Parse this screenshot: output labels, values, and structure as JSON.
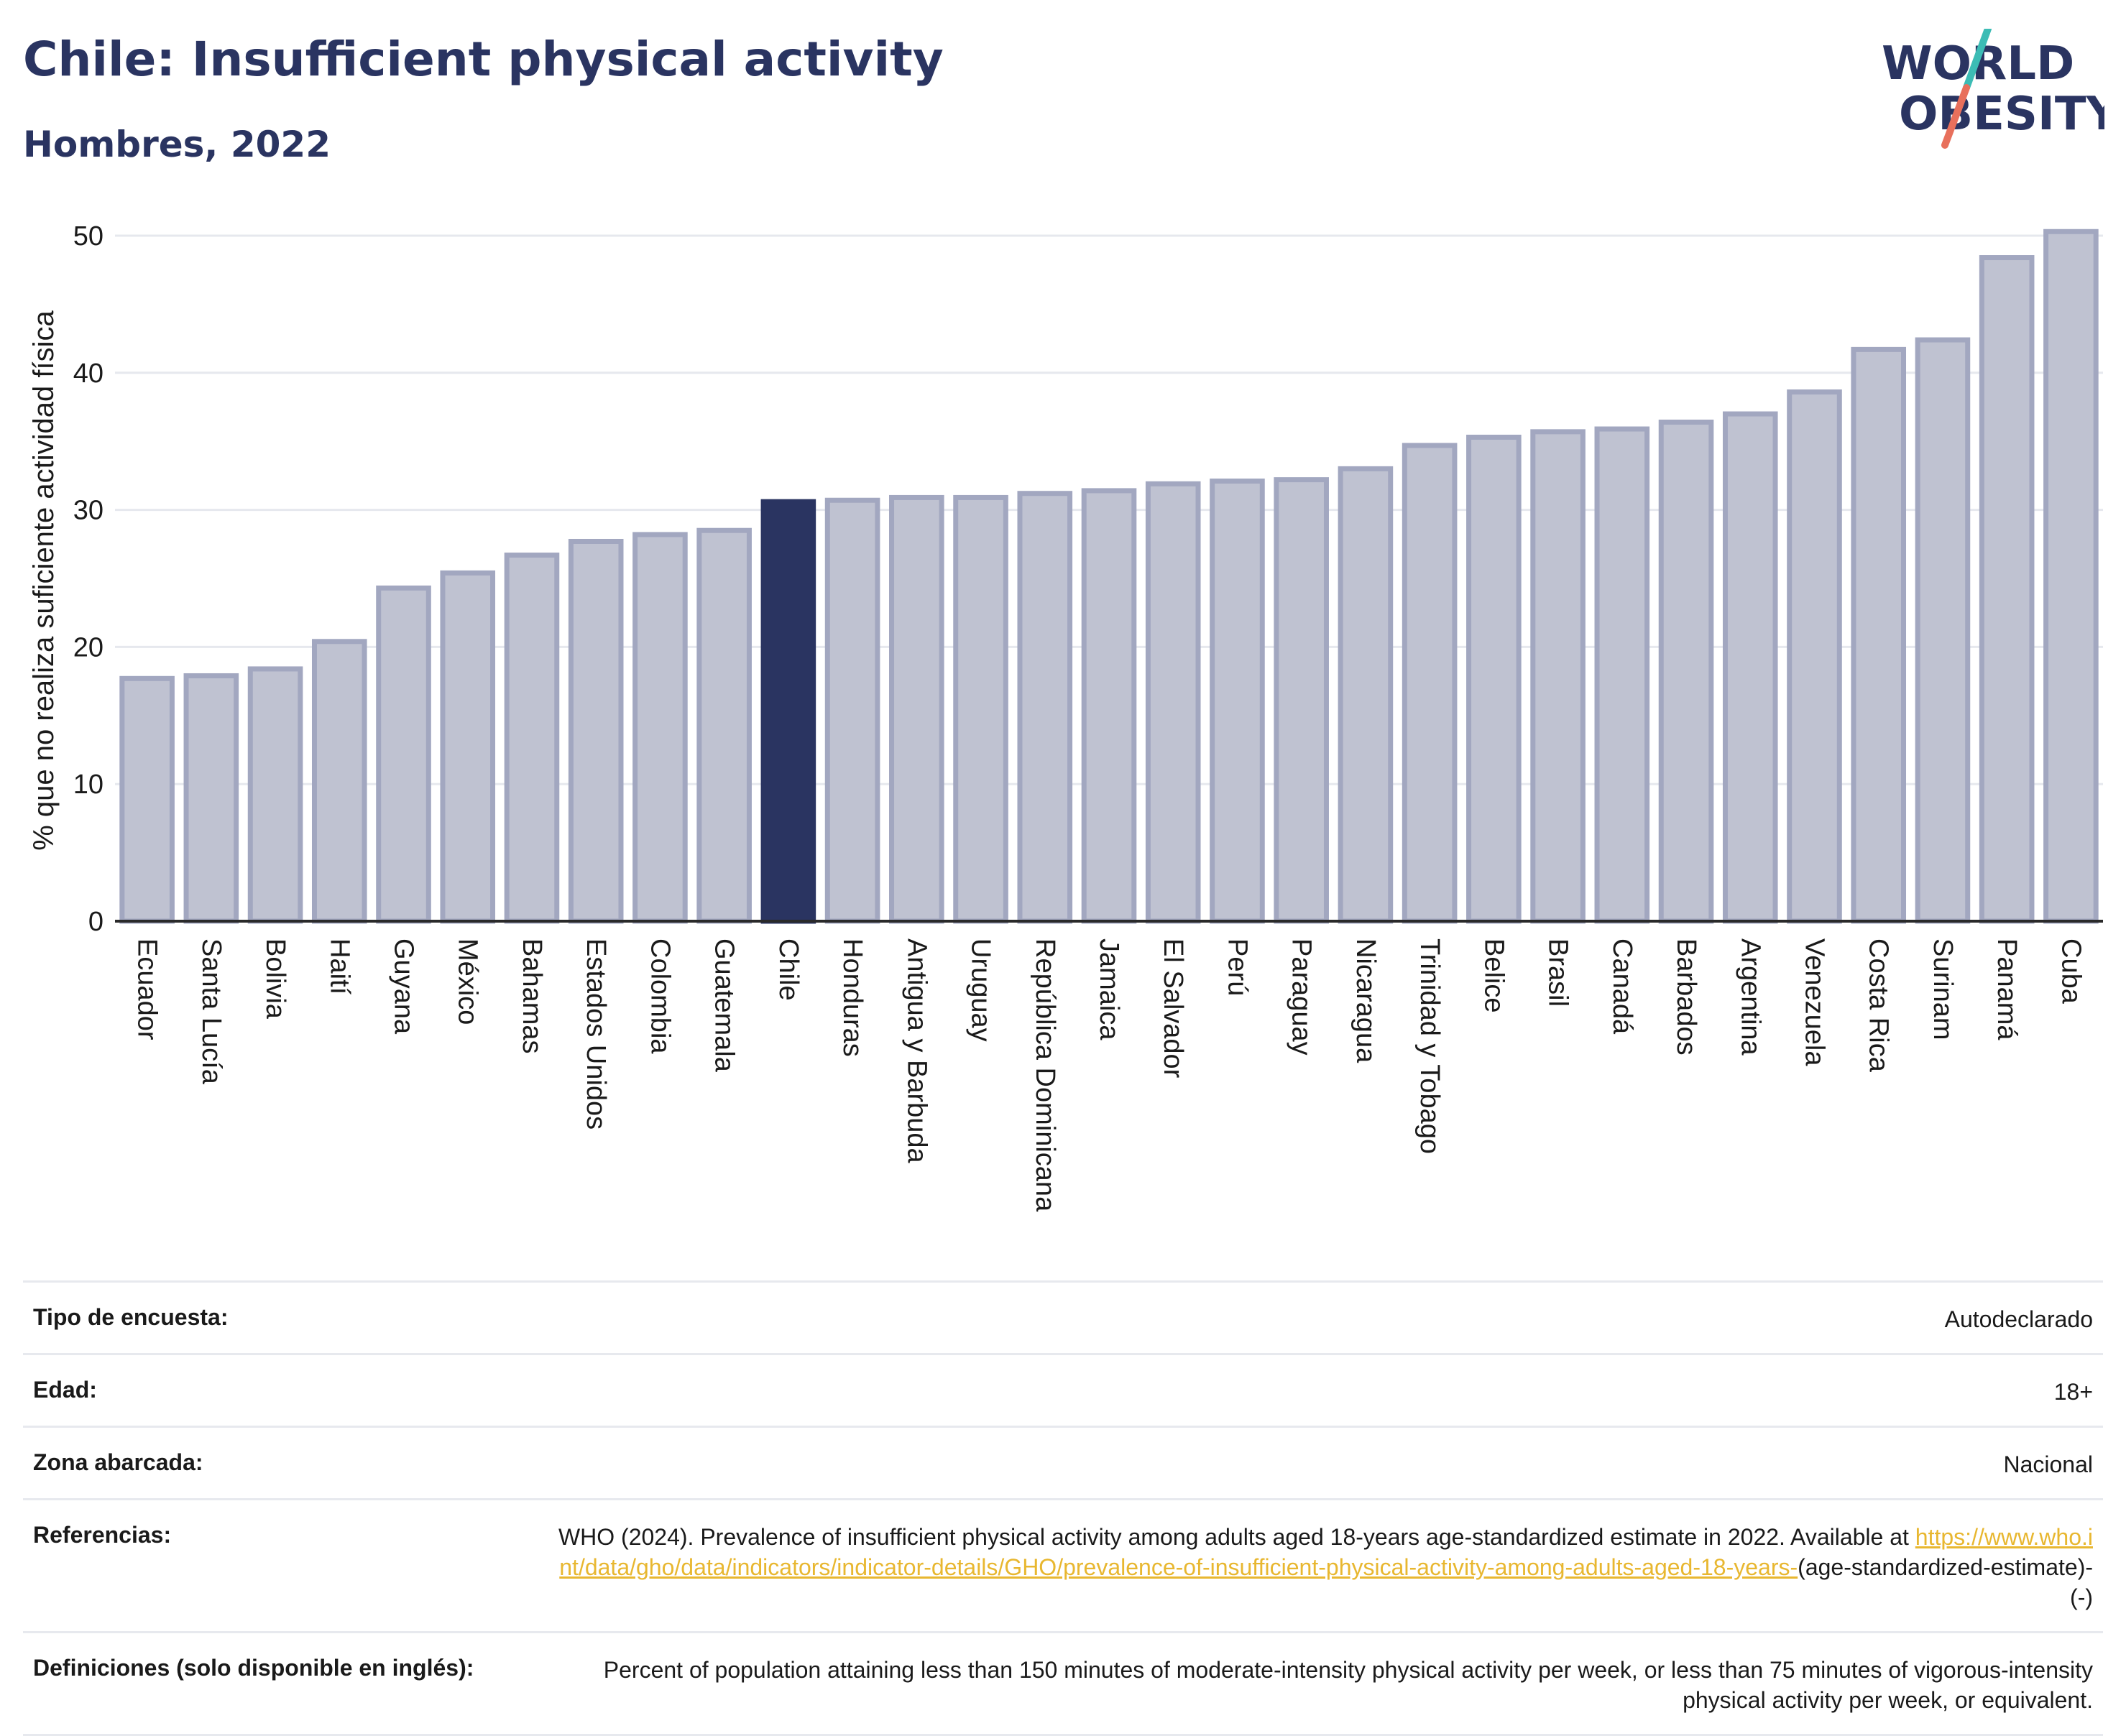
{
  "header": {
    "title": "Chile: Insufficient physical activity",
    "subtitle": "Hombres, 2022",
    "logo_line1": "WORLD",
    "logo_line2": "OBESITY"
  },
  "colors": {
    "bar": "#bfc2d1",
    "bar_border": "#a2a7c0",
    "highlight": "#2a3461",
    "text": "#2a3461",
    "grid": "#e6e8ee",
    "link": "#e8b730",
    "logo_teal": "#3cbcb5",
    "logo_coral": "#e8705c"
  },
  "chart_data": {
    "type": "bar",
    "ylabel": "% que no realiza suficiente actividad física",
    "ylim": [
      0,
      50
    ],
    "yticks": [
      0,
      10,
      20,
      30,
      40,
      50
    ],
    "grid": true,
    "highlight": "Chile",
    "categories": [
      "Ecuador",
      "Santa Lucía",
      "Bolivia",
      "Haití",
      "Guyana",
      "México",
      "Bahamas",
      "Estados Unidos",
      "Colombia",
      "Guatemala",
      "Chile",
      "Honduras",
      "Antigua y Barbuda",
      "Uruguay",
      "República Dominicana",
      "Jamaica",
      "El Salvador",
      "Perú",
      "Paraguay",
      "Nicaragua",
      "Trinidad y Tobago",
      "Belice",
      "Brasil",
      "Canadá",
      "Barbados",
      "Argentina",
      "Venezuela",
      "Costa Rica",
      "Surinam",
      "Panamá",
      "Cuba"
    ],
    "values": [
      17.7,
      17.9,
      18.4,
      20.4,
      24.3,
      25.4,
      26.7,
      27.7,
      28.2,
      28.5,
      30.6,
      30.7,
      30.9,
      30.9,
      31.2,
      31.4,
      31.9,
      32.1,
      32.2,
      33.0,
      34.7,
      35.3,
      35.7,
      35.9,
      36.4,
      37.0,
      38.6,
      41.7,
      42.4,
      48.4,
      50.3
    ]
  },
  "metadata": {
    "rows": [
      {
        "label": "Tipo de encuesta:",
        "value": "Autodeclarado"
      },
      {
        "label": "Edad:",
        "value": "18+"
      },
      {
        "label": "Zona abarcada:",
        "value": "Nacional"
      }
    ],
    "references": {
      "label": "Referencias:",
      "text": "WHO (2024). Prevalence of insufficient physical activity among adults aged 18-years age-standardized estimate in 2022. Available at",
      "link": "https://www.who.int/data/gho/data/indicators/indicator-details/GHO/prevalence-of-insufficient-physical-activity-among-adults-aged-18-years-",
      "suffix": "(age-standardized-estimate)-(-)"
    },
    "definitions": {
      "label": "Definiciones (solo disponible en inglés):",
      "value": "Percent of population attaining less than 150 minutes of moderate-intensity physical activity per week, or less than 75 minutes of vigorous-intensity physical activity per week, or equivalent."
    }
  }
}
